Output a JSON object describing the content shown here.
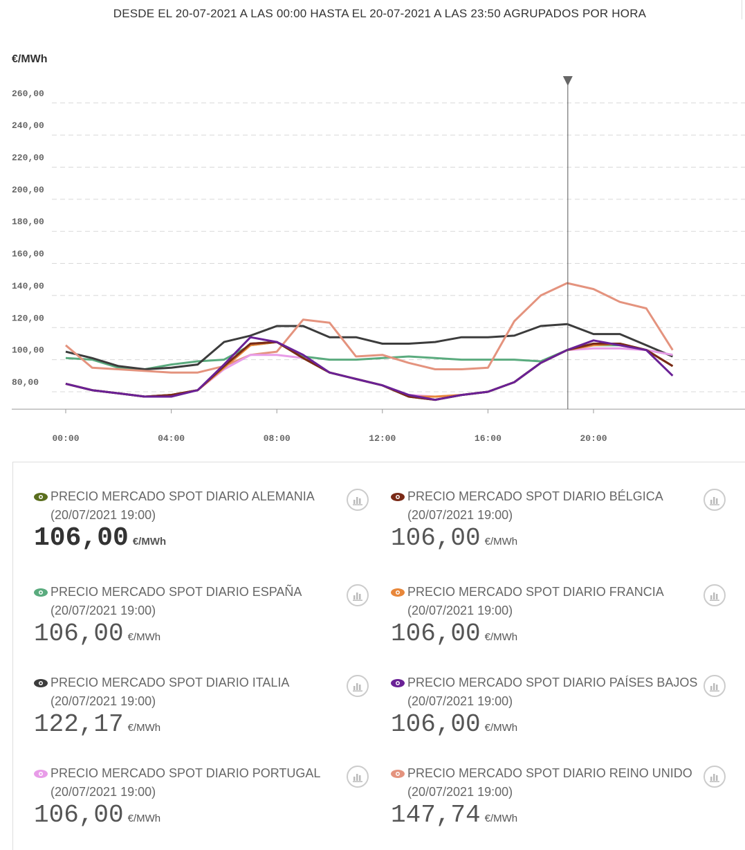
{
  "header": {
    "subtitle": "DESDE EL 20-07-2021 A LAS 00:00 HASTA EL 20-07-2021 A LAS 23:50 AGRUPADOS POR HORA",
    "unit": "€/MWh"
  },
  "chart_data": {
    "type": "line",
    "ylabel": "€/MWh",
    "ylim": [
      70,
      270
    ],
    "x_ticks": [
      "00:00",
      "04:00",
      "08:00",
      "12:00",
      "16:00",
      "20:00"
    ],
    "y_ticks": [
      "80,00",
      "100,00",
      "120,00",
      "140,00",
      "160,00",
      "180,00",
      "200,00",
      "220,00",
      "240,00",
      "260,00"
    ],
    "y_tick_values": [
      80,
      100,
      120,
      140,
      160,
      180,
      200,
      220,
      240,
      260
    ],
    "grid": true,
    "cursor_hour": 19,
    "x": [
      0,
      1,
      2,
      3,
      4,
      5,
      6,
      7,
      8,
      9,
      10,
      11,
      12,
      13,
      14,
      15,
      16,
      17,
      18,
      19,
      20,
      21,
      22,
      23
    ],
    "series": [
      {
        "name": "PRECIO MERCADO SPOT DIARIO ESPAÑA",
        "color": "#5aab7e",
        "values": [
          101,
          100,
          95,
          94,
          97,
          99,
          100,
          109,
          111,
          102,
          100,
          100,
          101,
          102,
          101,
          100,
          100,
          100,
          99,
          106,
          109,
          109,
          106,
          103
        ]
      },
      {
        "name": "PRECIO MERCADO SPOT DIARIO ITALIA",
        "color": "#3c3c3c",
        "values": [
          105,
          101,
          96,
          94,
          95,
          97,
          111,
          115,
          121,
          121,
          114,
          114,
          110,
          110,
          111,
          114,
          114,
          115,
          121,
          122.17,
          116,
          116,
          109,
          102
        ]
      },
      {
        "name": "PRECIO MERCADO SPOT DIARIO REINO UNIDO",
        "color": "#e4937e",
        "values": [
          109,
          95,
          94,
          93,
          92,
          92,
          96,
          103,
          105,
          125,
          123,
          102,
          103,
          98,
          94,
          94,
          95,
          124,
          140,
          147.74,
          144,
          136,
          132,
          106
        ]
      },
      {
        "name": "PRECIO MERCADO SPOT DIARIO PORTUGAL",
        "color": "#e89ce8",
        "values": [
          85,
          81,
          79,
          77,
          78,
          81,
          94,
          103,
          103,
          101,
          92,
          88,
          84,
          78,
          77,
          78,
          80,
          86,
          98,
          106,
          107,
          107,
          106,
          103
        ]
      },
      {
        "name": "PRECIO MERCADO SPOT DIARIO FRANCIA",
        "color": "#e8873a",
        "values": [
          85,
          81,
          79,
          77,
          78,
          81,
          95,
          109,
          111,
          101,
          92,
          88,
          84,
          77,
          77,
          78,
          80,
          86,
          98,
          106,
          109,
          110,
          106,
          96
        ]
      },
      {
        "name": "PRECIO MERCADO SPOT DIARIO ALEMANIA",
        "color": "#5a6e1e",
        "values": [
          85,
          81,
          79,
          77,
          78,
          81,
          96,
          110,
          111,
          101,
          92,
          88,
          84,
          77,
          75,
          78,
          80,
          86,
          98,
          106,
          110,
          110,
          106,
          96
        ]
      },
      {
        "name": "PRECIO MERCADO SPOT DIARIO BÉLGICA",
        "color": "#7a2a17",
        "values": [
          85,
          81,
          79,
          77,
          78,
          81,
          96,
          110,
          111,
          101,
          92,
          88,
          84,
          77,
          75,
          78,
          80,
          86,
          98,
          106,
          110,
          110,
          106,
          96
        ]
      },
      {
        "name": "PRECIO MERCADO SPOT DIARIO PAÍSES BAJOS",
        "color": "#6a2196",
        "values": [
          85,
          81,
          79,
          77,
          77,
          81,
          97,
          114,
          111,
          103,
          92,
          88,
          84,
          78,
          75,
          78,
          80,
          86,
          98,
          106,
          112,
          109,
          106,
          90
        ]
      }
    ]
  },
  "legend": {
    "items": [
      {
        "title": "PRECIO MERCADO SPOT DIARIO ALEMANIA",
        "date": "(20/07/2021 19:00)",
        "value": "106,00",
        "unit": "€/MWh",
        "color": "#5a6e1e"
      },
      {
        "title": "PRECIO MERCADO SPOT DIARIO BÉLGICA",
        "date": "(20/07/2021 19:00)",
        "value": "106,00",
        "unit": "€/MWh",
        "color": "#7a2a17"
      },
      {
        "title": "PRECIO MERCADO SPOT DIARIO ESPAÑA",
        "date": "(20/07/2021 19:00)",
        "value": "106,00",
        "unit": "€/MWh",
        "color": "#5aab7e"
      },
      {
        "title": "PRECIO MERCADO SPOT DIARIO FRANCIA",
        "date": "(20/07/2021 19:00)",
        "value": "106,00",
        "unit": "€/MWh",
        "color": "#e8873a"
      },
      {
        "title": "PRECIO MERCADO SPOT DIARIO ITALIA",
        "date": "(20/07/2021 19:00)",
        "value": "122,17",
        "unit": "€/MWh",
        "color": "#3c3c3c"
      },
      {
        "title": "PRECIO MERCADO SPOT DIARIO PAÍSES BAJOS",
        "date": "(20/07/2021 19:00)",
        "value": "106,00",
        "unit": "€/MWh",
        "color": "#6a2196"
      },
      {
        "title": "PRECIO MERCADO SPOT DIARIO PORTUGAL",
        "date": "(20/07/2021 19:00)",
        "value": "106,00",
        "unit": "€/MWh",
        "color": "#e89ce8"
      },
      {
        "title": "PRECIO MERCADO SPOT DIARIO REINO UNIDO",
        "date": "(20/07/2021 19:00)",
        "value": "147,74",
        "unit": "€/MWh",
        "color": "#e4937e"
      }
    ]
  }
}
